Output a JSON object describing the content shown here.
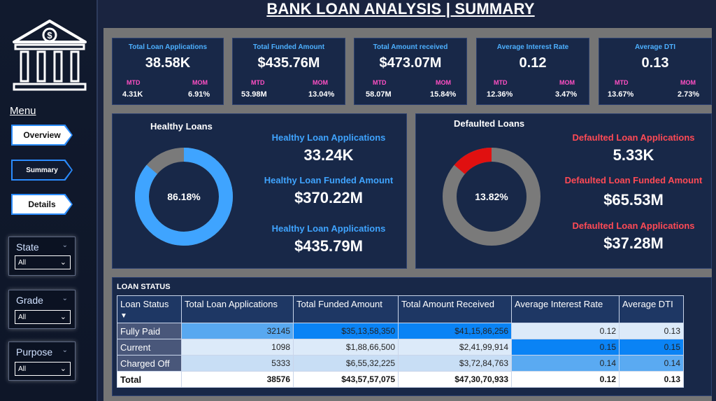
{
  "title": "BANK LOAN ANALYSIS | SUMMARY",
  "sidebar": {
    "menu_label": "Menu",
    "nav": [
      {
        "label": "Overview"
      },
      {
        "label": "Summary"
      },
      {
        "label": "Details"
      }
    ],
    "slicers": [
      {
        "label": "State",
        "value": "All"
      },
      {
        "label": "Grade",
        "value": "All"
      },
      {
        "label": "Purpose",
        "value": "All"
      }
    ]
  },
  "kpis": [
    {
      "title": "Total Loan Applications",
      "value": "38.58K",
      "mtd_label": "MTD",
      "mtd": "4.31K",
      "mom_label": "MOM",
      "mom": "6.91%"
    },
    {
      "title": "Total Funded Amount",
      "value": "$435.76M",
      "mtd_label": "MTD",
      "mtd": "53.98M",
      "mom_label": "MOM",
      "mom": "13.04%"
    },
    {
      "title": "Total Amount received",
      "value": "$473.07M",
      "mtd_label": "MTD",
      "mtd": "58.07M",
      "mom_label": "MOM",
      "mom": "15.84%"
    },
    {
      "title": "Average Interest Rate",
      "value": "0.12",
      "mtd_label": "MTD",
      "mtd": "12.36%",
      "mom_label": "MOM",
      "mom": "3.47%"
    },
    {
      "title": "Average DTI",
      "value": "0.13",
      "mtd_label": "MTD",
      "mtd": "13.67%",
      "mom_label": "MOM",
      "mom": "2.73%"
    }
  ],
  "healthy": {
    "title": "Healthy Loans",
    "donut_label": "86.18%",
    "donut_fraction": 0.8618,
    "color": "#3fa4ff",
    "metrics": [
      {
        "label": "Healthy Loan Applications",
        "value": "33.24K"
      },
      {
        "label": "Healthy Loan Funded Amount",
        "value": "$370.22M"
      },
      {
        "label": "Healthy Loan Applications",
        "value": "$435.79M"
      }
    ]
  },
  "defaulted": {
    "title": "Defaulted Loans",
    "donut_label": "13.82%",
    "donut_fraction": 0.1382,
    "color": "#e01010",
    "label_color": "#ff4a55",
    "metrics": [
      {
        "label": "Defaulted Loan Applications",
        "value": "5.33K"
      },
      {
        "label": "Defaulted Loan Funded Amount",
        "value": "$65.53M"
      },
      {
        "label": "Defaulted Loan Applications",
        "value": "$37.28M"
      }
    ]
  },
  "loan_status": {
    "title": "LOAN STATUS",
    "columns": [
      "Loan Status",
      "Total Loan Applications",
      "Total Funded Amount",
      "Total Amount Received",
      "Average Interest Rate",
      "Average DTI"
    ],
    "sort_indicator": "▼",
    "rows": [
      {
        "status": "Fully Paid",
        "apps": "32145",
        "funded": "$35,13,58,350",
        "received": "$41,15,86,256",
        "rate": "0.12",
        "dti": "0.13"
      },
      {
        "status": "Current",
        "apps": "1098",
        "funded": "$1,88,66,500",
        "received": "$2,41,99,914",
        "rate": "0.15",
        "dti": "0.15"
      },
      {
        "status": "Charged Off",
        "apps": "5333",
        "funded": "$6,55,32,225",
        "received": "$3,72,84,763",
        "rate": "0.14",
        "dti": "0.14"
      }
    ],
    "total": {
      "status": "Total",
      "apps": "38576",
      "funded": "$43,57,57,075",
      "received": "$47,30,70,933",
      "rate": "0.12",
      "dti": "0.13"
    }
  }
}
